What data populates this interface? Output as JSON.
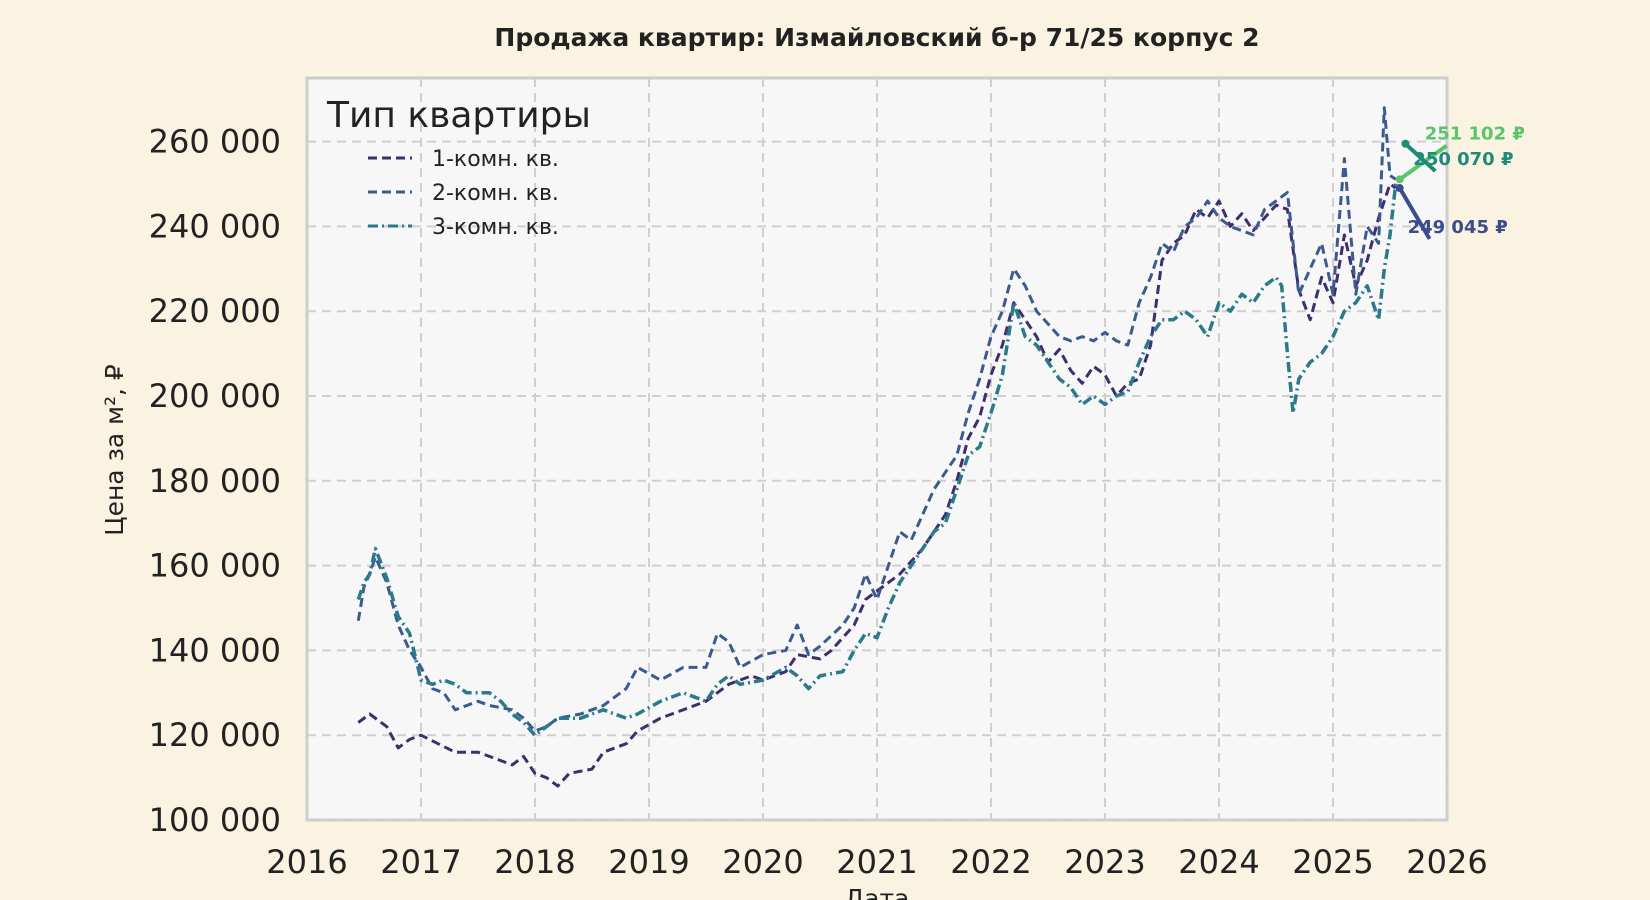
{
  "chart_data": {
    "type": "line",
    "title": "Продажа квартир: Измайловский б-р 71/25 корпус 2",
    "xlabel": "Дата",
    "ylabel": "Цена за м², ₽",
    "xlim": [
      2016,
      2026
    ],
    "ylim": [
      100000,
      275000
    ],
    "x_ticks": [
      "2016",
      "2017",
      "2018",
      "2019",
      "2020",
      "2021",
      "2022",
      "2023",
      "2024",
      "2025",
      "2026"
    ],
    "y_ticks": [
      {
        "value": 100000,
        "label": "100 000"
      },
      {
        "value": 120000,
        "label": "120 000"
      },
      {
        "value": 140000,
        "label": "140 000"
      },
      {
        "value": 160000,
        "label": "160 000"
      },
      {
        "value": 180000,
        "label": "180 000"
      },
      {
        "value": 200000,
        "label": "200 000"
      },
      {
        "value": 220000,
        "label": "220 000"
      },
      {
        "value": 240000,
        "label": "240 000"
      },
      {
        "value": 260000,
        "label": "260 000"
      }
    ],
    "grid": true,
    "legend": {
      "title": "Тип квартиры",
      "position": "top-left"
    },
    "series": [
      {
        "name": "1-комн. кв.",
        "color": "#3d2e6e",
        "style": "dashed",
        "points": [
          [
            2016.45,
            123000
          ],
          [
            2016.55,
            125000
          ],
          [
            2016.7,
            122000
          ],
          [
            2016.8,
            117000
          ],
          [
            2016.9,
            119000
          ],
          [
            2017.0,
            120000
          ],
          [
            2017.15,
            118000
          ],
          [
            2017.3,
            116000
          ],
          [
            2017.5,
            116000
          ],
          [
            2017.7,
            114000
          ],
          [
            2017.8,
            113000
          ],
          [
            2017.9,
            115000
          ],
          [
            2018.0,
            111000
          ],
          [
            2018.1,
            110000
          ],
          [
            2018.2,
            108000
          ],
          [
            2018.3,
            111000
          ],
          [
            2018.5,
            112000
          ],
          [
            2018.6,
            116000
          ],
          [
            2018.8,
            118000
          ],
          [
            2018.9,
            121000
          ],
          [
            2019.1,
            124000
          ],
          [
            2019.3,
            126000
          ],
          [
            2019.5,
            128000
          ],
          [
            2019.7,
            132000
          ],
          [
            2019.9,
            134000
          ],
          [
            2020.0,
            133000
          ],
          [
            2020.2,
            135000
          ],
          [
            2020.3,
            139000
          ],
          [
            2020.5,
            138000
          ],
          [
            2020.6,
            140000
          ],
          [
            2020.8,
            146000
          ],
          [
            2020.9,
            152000
          ],
          [
            2021.0,
            154000
          ],
          [
            2021.2,
            158000
          ],
          [
            2021.4,
            164000
          ],
          [
            2021.5,
            168000
          ],
          [
            2021.6,
            172000
          ],
          [
            2021.7,
            180000
          ],
          [
            2021.8,
            190000
          ],
          [
            2021.9,
            195000
          ],
          [
            2022.0,
            205000
          ],
          [
            2022.1,
            212000
          ],
          [
            2022.2,
            222000
          ],
          [
            2022.3,
            218000
          ],
          [
            2022.4,
            214000
          ],
          [
            2022.5,
            208000
          ],
          [
            2022.6,
            211000
          ],
          [
            2022.7,
            206000
          ],
          [
            2022.8,
            203000
          ],
          [
            2022.9,
            207000
          ],
          [
            2023.0,
            205000
          ],
          [
            2023.1,
            200000
          ],
          [
            2023.2,
            203000
          ],
          [
            2023.3,
            204000
          ],
          [
            2023.4,
            212000
          ],
          [
            2023.5,
            232000
          ],
          [
            2023.6,
            236000
          ],
          [
            2023.7,
            238000
          ],
          [
            2023.8,
            244000
          ],
          [
            2023.9,
            242000
          ],
          [
            2024.0,
            246000
          ],
          [
            2024.1,
            240000
          ],
          [
            2024.2,
            243000
          ],
          [
            2024.3,
            239000
          ],
          [
            2024.4,
            242000
          ],
          [
            2024.5,
            245000
          ],
          [
            2024.6,
            244000
          ],
          [
            2024.7,
            225000
          ],
          [
            2024.8,
            218000
          ],
          [
            2024.9,
            228000
          ],
          [
            2025.0,
            222000
          ],
          [
            2025.1,
            238000
          ],
          [
            2025.2,
            226000
          ],
          [
            2025.3,
            232000
          ],
          [
            2025.4,
            242000
          ],
          [
            2025.5,
            250000
          ],
          [
            2025.55,
            249045
          ]
        ]
      },
      {
        "name": "2-комн. кв.",
        "color": "#3b5b8e",
        "style": "dashed",
        "points": [
          [
            2016.45,
            147000
          ],
          [
            2016.5,
            155000
          ],
          [
            2016.55,
            158000
          ],
          [
            2016.6,
            162000
          ],
          [
            2016.7,
            156000
          ],
          [
            2016.8,
            146000
          ],
          [
            2016.9,
            140000
          ],
          [
            2017.0,
            136000
          ],
          [
            2017.1,
            131000
          ],
          [
            2017.2,
            130000
          ],
          [
            2017.3,
            126000
          ],
          [
            2017.5,
            128000
          ],
          [
            2017.6,
            127000
          ],
          [
            2017.8,
            126000
          ],
          [
            2017.9,
            124000
          ],
          [
            2018.0,
            121000
          ],
          [
            2018.1,
            122000
          ],
          [
            2018.2,
            124000
          ],
          [
            2018.4,
            125000
          ],
          [
            2018.6,
            127000
          ],
          [
            2018.8,
            131000
          ],
          [
            2018.9,
            136000
          ],
          [
            2019.1,
            133000
          ],
          [
            2019.3,
            136000
          ],
          [
            2019.5,
            136000
          ],
          [
            2019.6,
            144000
          ],
          [
            2019.7,
            142000
          ],
          [
            2019.8,
            136000
          ],
          [
            2020.0,
            139000
          ],
          [
            2020.2,
            140000
          ],
          [
            2020.3,
            146000
          ],
          [
            2020.4,
            139000
          ],
          [
            2020.5,
            141000
          ],
          [
            2020.7,
            146000
          ],
          [
            2020.8,
            150000
          ],
          [
            2020.9,
            158000
          ],
          [
            2021.0,
            152000
          ],
          [
            2021.1,
            160000
          ],
          [
            2021.2,
            168000
          ],
          [
            2021.3,
            166000
          ],
          [
            2021.5,
            178000
          ],
          [
            2021.6,
            182000
          ],
          [
            2021.7,
            186000
          ],
          [
            2021.8,
            196000
          ],
          [
            2021.9,
            204000
          ],
          [
            2022.0,
            214000
          ],
          [
            2022.1,
            220000
          ],
          [
            2022.2,
            230000
          ],
          [
            2022.3,
            226000
          ],
          [
            2022.4,
            220000
          ],
          [
            2022.5,
            217000
          ],
          [
            2022.6,
            214000
          ],
          [
            2022.7,
            213000
          ],
          [
            2022.8,
            214000
          ],
          [
            2022.9,
            213000
          ],
          [
            2023.0,
            215000
          ],
          [
            2023.1,
            213000
          ],
          [
            2023.2,
            212000
          ],
          [
            2023.3,
            222000
          ],
          [
            2023.4,
            228000
          ],
          [
            2023.5,
            236000
          ],
          [
            2023.6,
            234000
          ],
          [
            2023.7,
            240000
          ],
          [
            2023.8,
            242000
          ],
          [
            2023.9,
            246000
          ],
          [
            2024.0,
            242000
          ],
          [
            2024.1,
            240000
          ],
          [
            2024.3,
            238000
          ],
          [
            2024.4,
            244000
          ],
          [
            2024.5,
            246000
          ],
          [
            2024.6,
            248000
          ],
          [
            2024.7,
            224000
          ],
          [
            2024.8,
            230000
          ],
          [
            2024.9,
            236000
          ],
          [
            2025.0,
            224000
          ],
          [
            2025.1,
            256000
          ],
          [
            2025.2,
            224000
          ],
          [
            2025.3,
            240000
          ],
          [
            2025.4,
            236000
          ],
          [
            2025.45,
            268000
          ],
          [
            2025.5,
            252000
          ],
          [
            2025.55,
            251102
          ]
        ]
      },
      {
        "name": "3-комн. кв.",
        "color": "#2a7a8a",
        "style": "dashdot",
        "points": [
          [
            2016.45,
            152000
          ],
          [
            2016.5,
            156000
          ],
          [
            2016.55,
            158000
          ],
          [
            2016.6,
            164000
          ],
          [
            2016.7,
            157000
          ],
          [
            2016.8,
            148000
          ],
          [
            2016.9,
            144000
          ],
          [
            2017.0,
            133000
          ],
          [
            2017.1,
            132000
          ],
          [
            2017.2,
            133000
          ],
          [
            2017.3,
            132000
          ],
          [
            2017.4,
            130000
          ],
          [
            2017.6,
            130000
          ],
          [
            2017.7,
            128000
          ],
          [
            2017.8,
            125000
          ],
          [
            2017.9,
            123000
          ],
          [
            2018.0,
            120000
          ],
          [
            2018.1,
            122000
          ],
          [
            2018.2,
            124000
          ],
          [
            2018.4,
            124000
          ],
          [
            2018.6,
            126000
          ],
          [
            2018.8,
            124000
          ],
          [
            2018.9,
            125000
          ],
          [
            2019.1,
            128000
          ],
          [
            2019.3,
            130000
          ],
          [
            2019.5,
            128000
          ],
          [
            2019.6,
            132000
          ],
          [
            2019.7,
            134000
          ],
          [
            2019.8,
            132000
          ],
          [
            2020.0,
            133000
          ],
          [
            2020.2,
            136000
          ],
          [
            2020.3,
            134000
          ],
          [
            2020.4,
            131000
          ],
          [
            2020.5,
            134000
          ],
          [
            2020.7,
            135000
          ],
          [
            2020.8,
            140000
          ],
          [
            2020.9,
            144000
          ],
          [
            2021.0,
            143000
          ],
          [
            2021.1,
            150000
          ],
          [
            2021.2,
            156000
          ],
          [
            2021.3,
            160000
          ],
          [
            2021.5,
            168000
          ],
          [
            2021.6,
            170000
          ],
          [
            2021.7,
            178000
          ],
          [
            2021.8,
            186000
          ],
          [
            2021.9,
            188000
          ],
          [
            2022.0,
            196000
          ],
          [
            2022.1,
            205000
          ],
          [
            2022.2,
            222000
          ],
          [
            2022.3,
            214000
          ],
          [
            2022.4,
            212000
          ],
          [
            2022.5,
            208000
          ],
          [
            2022.6,
            204000
          ],
          [
            2022.7,
            202000
          ],
          [
            2022.8,
            198000
          ],
          [
            2022.9,
            200000
          ],
          [
            2023.0,
            198000
          ],
          [
            2023.1,
            200000
          ],
          [
            2023.2,
            201000
          ],
          [
            2023.3,
            208000
          ],
          [
            2023.4,
            214000
          ],
          [
            2023.5,
            218000
          ],
          [
            2023.6,
            218000
          ],
          [
            2023.7,
            220000
          ],
          [
            2023.8,
            218000
          ],
          [
            2023.9,
            214000
          ],
          [
            2024.0,
            222000
          ],
          [
            2024.1,
            220000
          ],
          [
            2024.2,
            224000
          ],
          [
            2024.3,
            222000
          ],
          [
            2024.4,
            226000
          ],
          [
            2024.5,
            228000
          ],
          [
            2024.55,
            226000
          ],
          [
            2024.6,
            210000
          ],
          [
            2024.65,
            196000
          ],
          [
            2024.7,
            204000
          ],
          [
            2024.8,
            208000
          ],
          [
            2024.9,
            210000
          ],
          [
            2025.0,
            214000
          ],
          [
            2025.1,
            220000
          ],
          [
            2025.2,
            222000
          ],
          [
            2025.3,
            226000
          ],
          [
            2025.4,
            218000
          ],
          [
            2025.45,
            230000
          ],
          [
            2025.5,
            238000
          ],
          [
            2025.55,
            250070
          ]
        ]
      }
    ],
    "annotations": [
      {
        "text": "251 102 ₽",
        "color": "#5cc46a",
        "anchor": [
          2025.55,
          251102
        ],
        "label_at": [
          2026.05,
          260000
        ]
      },
      {
        "text": "250 070 ₽",
        "color": "#1f8a78",
        "anchor": [
          2025.6,
          259500
        ],
        "label_at": [
          2025.95,
          254000
        ]
      },
      {
        "text": "249 045 ₽",
        "color": "#3b4d8a",
        "anchor": [
          2025.55,
          249045
        ],
        "label_at": [
          2025.9,
          238000
        ]
      }
    ]
  }
}
